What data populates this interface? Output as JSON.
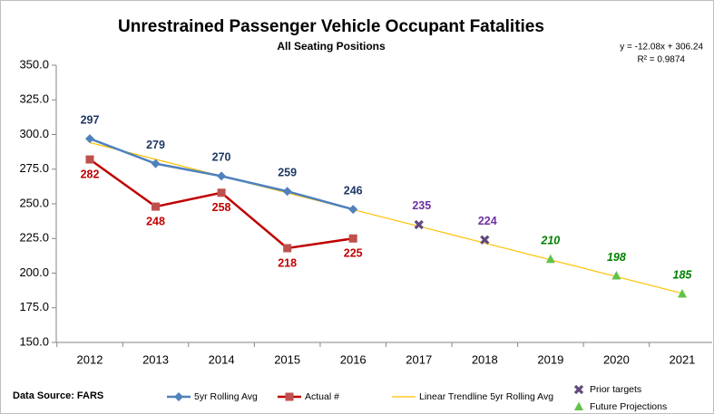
{
  "chart_data": {
    "type": "line",
    "title": "Unrestrained Passenger Vehicle Occupant Fatalities",
    "subtitle": "All Seating Positions",
    "annotations": [
      "y = -12.08x + 306.24",
      "R² = 0.9874"
    ],
    "source": "Data Source: FARS",
    "categories": [
      "2012",
      "2013",
      "2014",
      "2015",
      "2016",
      "2017",
      "2018",
      "2019",
      "2020",
      "2021"
    ],
    "ylim": [
      150,
      350
    ],
    "yticks": [
      {
        "value": 150,
        "label": "150.0"
      },
      {
        "value": 175,
        "label": "175.0"
      },
      {
        "value": 200,
        "label": "200.0"
      },
      {
        "value": 225,
        "label": "225.0"
      },
      {
        "value": 250,
        "label": "250.0"
      },
      {
        "value": 275,
        "label": "275.0"
      },
      {
        "value": 300,
        "label": "300.0"
      },
      {
        "value": 325,
        "label": "325.0"
      },
      {
        "value": 350,
        "label": "350.0"
      }
    ],
    "grid": false,
    "series": [
      {
        "name": "Linear Trendline 5yr Rolling Avg",
        "color": "#ffc000",
        "marker": "none",
        "line": true,
        "labels": false,
        "values": [
          294.2,
          282.1,
          270.0,
          257.9,
          245.8,
          233.8,
          221.7,
          209.6,
          197.5,
          185.4
        ]
      },
      {
        "name": "5yr Rolling Avg",
        "color": "#4f81bd",
        "label_color": "#1f3864",
        "marker": "diamond",
        "line": true,
        "labels": true,
        "label_position": "above",
        "values": [
          297,
          279,
          270,
          259,
          246,
          null,
          null,
          null,
          null,
          null
        ]
      },
      {
        "name": "Actual #",
        "color": "#c0504d",
        "line_color": "#c00000",
        "label_color": "#c00000",
        "marker": "square",
        "line": true,
        "labels": true,
        "label_position": "below",
        "values": [
          282,
          248,
          258,
          218,
          225,
          null,
          null,
          null,
          null,
          null
        ]
      },
      {
        "name": "Prior targets",
        "color": "#604a7b",
        "label_color": "#7030a0",
        "marker": "x",
        "line": false,
        "labels": true,
        "label_position": "above",
        "values": [
          null,
          null,
          null,
          null,
          null,
          235,
          224,
          null,
          null,
          null
        ]
      },
      {
        "name": "Future Projections",
        "color": "#5fc34a",
        "label_color": "#008000",
        "marker": "triangle",
        "line": false,
        "labels": true,
        "label_position": "above",
        "italic": true,
        "values": [
          null,
          null,
          null,
          null,
          null,
          null,
          null,
          210,
          198,
          185
        ]
      }
    ]
  }
}
